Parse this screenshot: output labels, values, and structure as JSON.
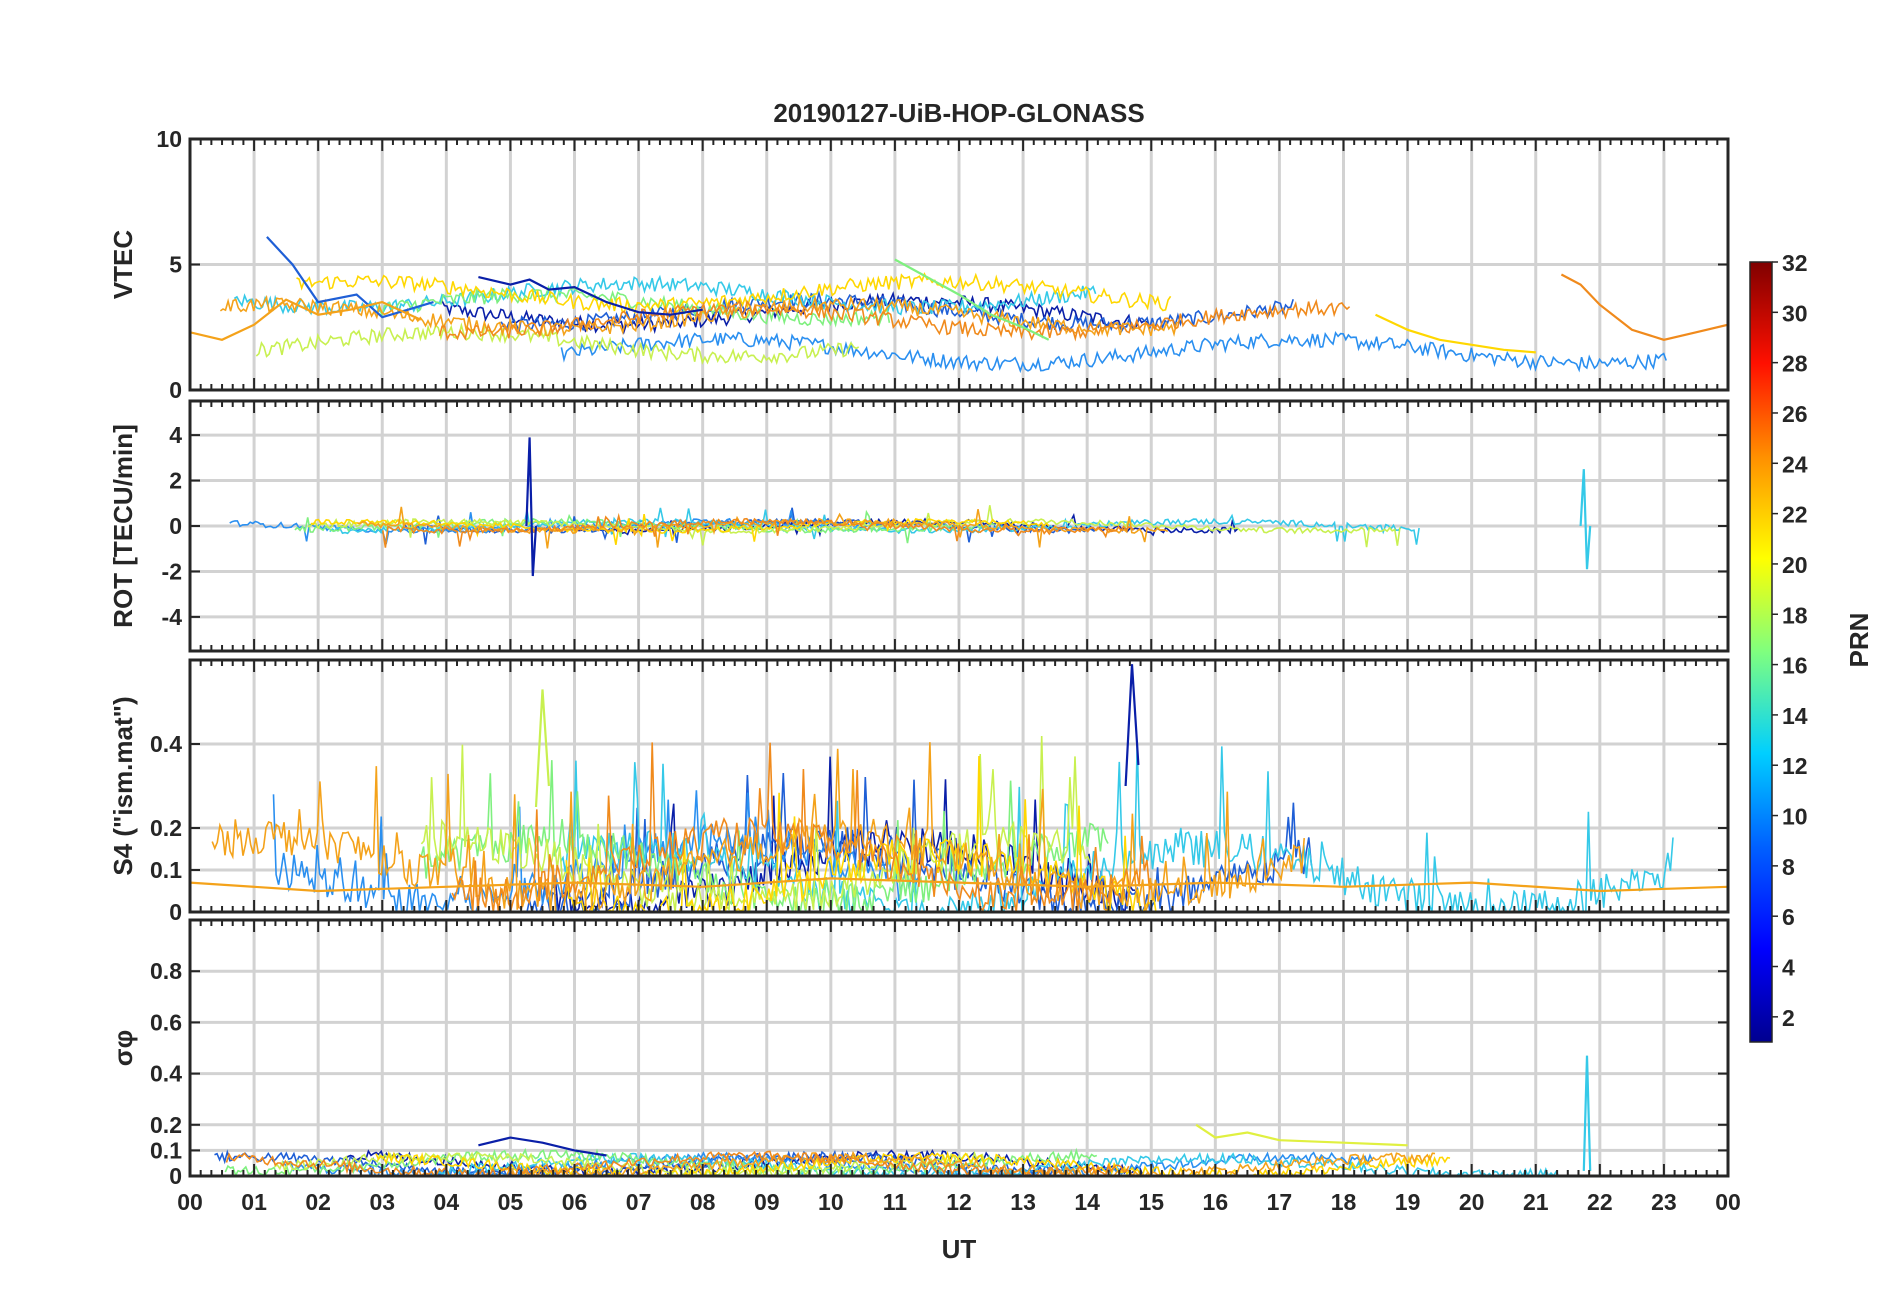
{
  "chart_data": [
    {
      "type": "line",
      "title": "20190127-UiB-HOP-GLONASS",
      "ylabel": "VTEC",
      "xlabel": "",
      "ylim": [
        0,
        10
      ],
      "yticks": [
        "0",
        "5",
        "10"
      ],
      "grid": true,
      "series": [
        {
          "color": "#1f5fd6",
          "x": [
            1.2,
            1.6,
            2.0,
            2.6,
            3.0,
            3.4,
            3.8
          ],
          "y": [
            6.1,
            5.0,
            3.5,
            3.8,
            2.9,
            3.2,
            3.5
          ]
        },
        {
          "color": "#f4a21a",
          "x": [
            0.0,
            0.5,
            1.0,
            1.5,
            2.0,
            2.5,
            3.0,
            3.6
          ],
          "y": [
            2.3,
            2.0,
            2.6,
            3.6,
            3.0,
            3.2,
            3.5,
            2.8
          ]
        },
        {
          "color": "#0a1fa8",
          "x": [
            4.5,
            5.0,
            5.3,
            5.6,
            6.0,
            6.5,
            7.0,
            7.5,
            8.0
          ],
          "y": [
            4.5,
            4.2,
            4.4,
            4.0,
            4.1,
            3.5,
            3.1,
            3.0,
            3.2
          ]
        },
        {
          "color": "#7ff07f",
          "x": [
            11.0,
            11.5,
            12.0,
            12.5,
            13.0,
            13.4
          ],
          "y": [
            5.2,
            4.5,
            3.8,
            3.0,
            2.5,
            2.0
          ]
        },
        {
          "color": "#ffd700",
          "x": [
            18.5,
            19.0,
            19.5,
            20.0,
            20.5,
            21.0
          ],
          "y": [
            3.0,
            2.4,
            2.0,
            1.8,
            1.6,
            1.5
          ]
        },
        {
          "color": "#f08a1c",
          "x": [
            21.4,
            21.7,
            22.0,
            22.5,
            23.0,
            23.5,
            24.0
          ],
          "y": [
            4.6,
            4.2,
            3.4,
            2.4,
            2.0,
            2.3,
            2.6
          ]
        }
      ]
    },
    {
      "type": "line",
      "title": "",
      "ylabel": "ROT [TECU/min]",
      "xlabel": "",
      "ylim": [
        -5.5,
        5.5
      ],
      "yticks": [
        "-4",
        "-2",
        "0",
        "2",
        "4"
      ],
      "grid": true,
      "series": [
        {
          "color": "#0a1fa8",
          "x": [
            5.25,
            5.3,
            5.35,
            5.4
          ],
          "y": [
            0.0,
            3.9,
            -2.2,
            0.0
          ]
        },
        {
          "color": "#35c9e8",
          "x": [
            21.7,
            21.75,
            21.8,
            21.85
          ],
          "y": [
            0.0,
            2.5,
            -1.9,
            0.0
          ]
        }
      ]
    },
    {
      "type": "line",
      "title": "",
      "ylabel": "S4 (\"ism.mat\")",
      "xlabel": "",
      "ylim": [
        0,
        0.6
      ],
      "yticks": [
        "0",
        "0.1",
        "0.2",
        "0.4"
      ],
      "grid": true,
      "series": [
        {
          "color": "#0a1fa8",
          "x": [
            14.6,
            14.7,
            14.8
          ],
          "y": [
            0.3,
            0.59,
            0.35
          ]
        },
        {
          "color": "#c8f050",
          "x": [
            5.4,
            5.5,
            5.6
          ],
          "y": [
            0.25,
            0.53,
            0.3
          ]
        },
        {
          "color": "#f4a21a",
          "x": [
            0.0,
            2.0,
            4.0,
            6.0,
            8.0,
            10.0,
            12.0,
            14.0,
            16.0,
            18.0,
            20.0,
            22.0,
            24.0
          ],
          "y": [
            0.07,
            0.05,
            0.06,
            0.07,
            0.06,
            0.08,
            0.07,
            0.06,
            0.07,
            0.06,
            0.07,
            0.05,
            0.06
          ]
        }
      ]
    },
    {
      "type": "line",
      "title": "",
      "ylabel": "σφ",
      "xlabel": "UT",
      "ylim": [
        0,
        1
      ],
      "yticks": [
        "0",
        "0.1",
        "0.2",
        "0.4",
        "0.6",
        "0.8"
      ],
      "xticks": [
        "00",
        "01",
        "02",
        "03",
        "04",
        "05",
        "06",
        "07",
        "08",
        "09",
        "10",
        "11",
        "12",
        "13",
        "14",
        "15",
        "16",
        "17",
        "18",
        "19",
        "20",
        "21",
        "22",
        "23",
        "00"
      ],
      "grid": true,
      "series": [
        {
          "color": "#35c9e8",
          "x": [
            21.75,
            21.8,
            21.85
          ],
          "y": [
            0.02,
            0.47,
            0.02
          ]
        },
        {
          "color": "#0a1fa8",
          "x": [
            4.5,
            5.0,
            5.5,
            6.0,
            6.5
          ],
          "y": [
            0.12,
            0.15,
            0.13,
            0.1,
            0.08
          ]
        },
        {
          "color": "#e0f040",
          "x": [
            15.7,
            16.0,
            16.5,
            17.0,
            18.0,
            19.0
          ],
          "y": [
            0.2,
            0.15,
            0.17,
            0.14,
            0.13,
            0.12
          ]
        }
      ]
    }
  ],
  "colorbar": {
    "label": "PRN",
    "min": 1,
    "max": 32,
    "ticks": [
      "2",
      "4",
      "6",
      "8",
      "10",
      "12",
      "14",
      "16",
      "18",
      "20",
      "22",
      "24",
      "26",
      "28",
      "30",
      "32"
    ]
  }
}
